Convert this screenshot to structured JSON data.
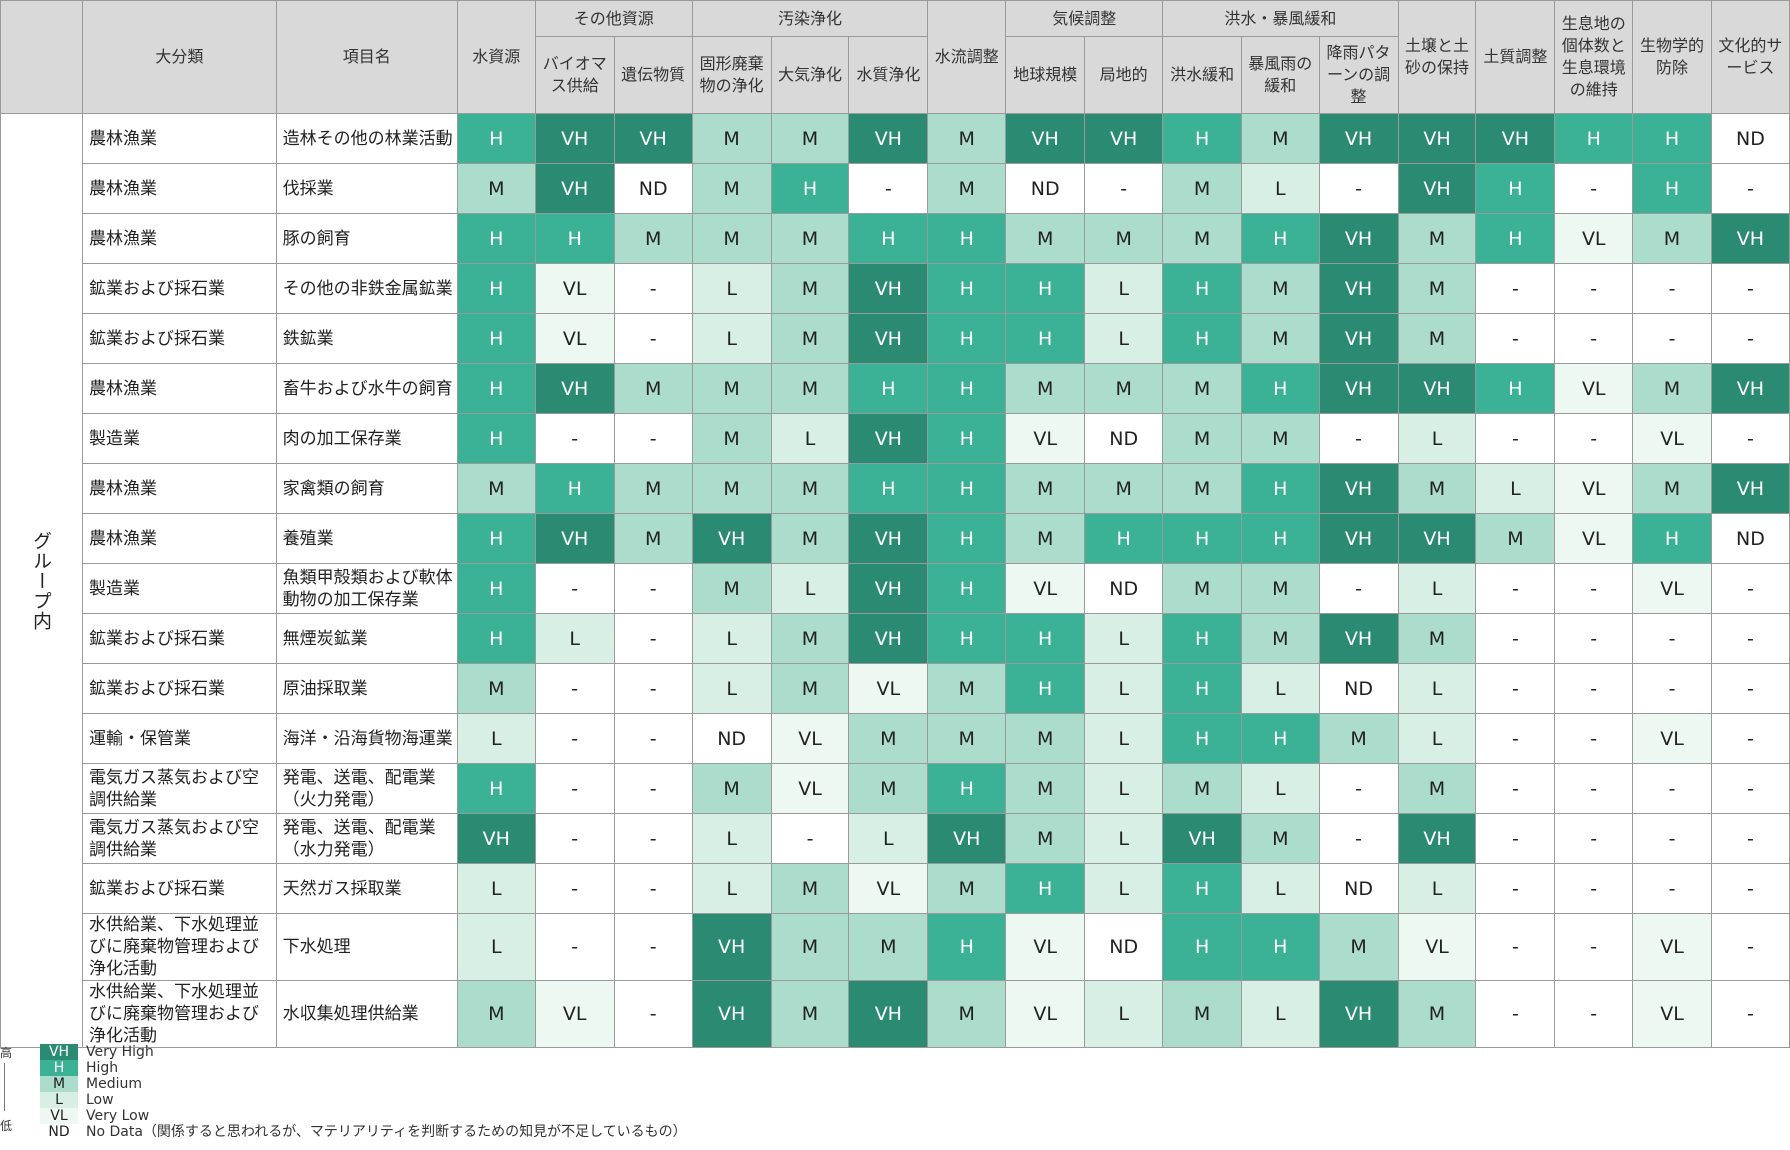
{
  "header": {
    "major_category": "大分類",
    "item_name": "項目名",
    "groups": [
      "その他資源",
      "汚染浄化",
      "気候調整",
      "洪水・暴風緩和"
    ],
    "columns": [
      "水資源",
      "バイオマス供給",
      "遺伝物質",
      "固形廃棄物の浄化",
      "大気浄化",
      "水質浄化",
      "水流調整",
      "地球規模",
      "局地的",
      "洪水緩和",
      "暴風雨の緩和",
      "降雨パターンの調整",
      "土壌と土砂の保持",
      "土質調整",
      "生息地の個体数と生息環境の維持",
      "生物学的防除",
      "文化的サービス"
    ]
  },
  "side_label": "グループ内",
  "rows": [
    {
      "category": "農林漁業",
      "item": "造林その他の林業活動",
      "values": [
        "H",
        "VH",
        "VH",
        "M",
        "M",
        "VH",
        "M",
        "VH",
        "VH",
        "H",
        "M",
        "VH",
        "VH",
        "VH",
        "H",
        "H",
        "ND"
      ]
    },
    {
      "category": "農林漁業",
      "item": "伐採業",
      "values": [
        "M",
        "VH",
        "ND",
        "M",
        "H",
        "-",
        "M",
        "ND",
        "-",
        "M",
        "L",
        "-",
        "VH",
        "H",
        "-",
        "H",
        "-"
      ]
    },
    {
      "category": "農林漁業",
      "item": "豚の飼育",
      "values": [
        "H",
        "H",
        "M",
        "M",
        "M",
        "H",
        "H",
        "M",
        "M",
        "M",
        "H",
        "VH",
        "M",
        "H",
        "VL",
        "M",
        "VH"
      ]
    },
    {
      "category": "鉱業および採石業",
      "item": "その他の非鉄金属鉱業",
      "values": [
        "H",
        "VL",
        "-",
        "L",
        "M",
        "VH",
        "H",
        "H",
        "L",
        "H",
        "M",
        "VH",
        "M",
        "-",
        "-",
        "-",
        "-"
      ]
    },
    {
      "category": "鉱業および採石業",
      "item": "鉄鉱業",
      "values": [
        "H",
        "VL",
        "-",
        "L",
        "M",
        "VH",
        "H",
        "H",
        "L",
        "H",
        "M",
        "VH",
        "M",
        "-",
        "-",
        "-",
        "-"
      ]
    },
    {
      "category": "農林漁業",
      "item": "畜牛および水牛の飼育",
      "values": [
        "H",
        "VH",
        "M",
        "M",
        "M",
        "H",
        "H",
        "M",
        "M",
        "M",
        "H",
        "VH",
        "VH",
        "H",
        "VL",
        "M",
        "VH"
      ]
    },
    {
      "category": "製造業",
      "item": "肉の加工保存業",
      "values": [
        "H",
        "-",
        "-",
        "M",
        "L",
        "VH",
        "H",
        "VL",
        "ND",
        "M",
        "M",
        "-",
        "L",
        "-",
        "-",
        "VL",
        "-"
      ]
    },
    {
      "category": "農林漁業",
      "item": "家禽類の飼育",
      "values": [
        "M",
        "H",
        "M",
        "M",
        "M",
        "H",
        "H",
        "M",
        "M",
        "M",
        "H",
        "VH",
        "M",
        "L",
        "VL",
        "M",
        "VH"
      ]
    },
    {
      "category": "農林漁業",
      "item": "養殖業",
      "values": [
        "H",
        "VH",
        "M",
        "VH",
        "M",
        "VH",
        "H",
        "M",
        "H",
        "H",
        "H",
        "VH",
        "VH",
        "M",
        "VL",
        "H",
        "ND"
      ]
    },
    {
      "category": "製造業",
      "item": "魚類甲殻類および軟体動物の加工保存業",
      "values": [
        "H",
        "-",
        "-",
        "M",
        "L",
        "VH",
        "H",
        "VL",
        "ND",
        "M",
        "M",
        "-",
        "L",
        "-",
        "-",
        "VL",
        "-"
      ]
    },
    {
      "category": "鉱業および採石業",
      "item": "無煙炭鉱業",
      "values": [
        "H",
        "L",
        "-",
        "L",
        "M",
        "VH",
        "H",
        "H",
        "L",
        "H",
        "M",
        "VH",
        "M",
        "-",
        "-",
        "-",
        "-"
      ]
    },
    {
      "category": "鉱業および採石業",
      "item": "原油採取業",
      "values": [
        "M",
        "-",
        "-",
        "L",
        "M",
        "VL",
        "M",
        "H",
        "L",
        "H",
        "L",
        "ND",
        "L",
        "-",
        "-",
        "-",
        "-"
      ]
    },
    {
      "category": "運輸・保管業",
      "item": "海洋・沿海貨物海運業",
      "values": [
        "L",
        "-",
        "-",
        "ND",
        "VL",
        "M",
        "M",
        "M",
        "L",
        "H",
        "H",
        "M",
        "L",
        "-",
        "-",
        "VL",
        "-"
      ]
    },
    {
      "category": "電気ガス蒸気および空調供給業",
      "item": "発電、送電、配電業（火力発電）",
      "values": [
        "H",
        "-",
        "-",
        "M",
        "VL",
        "M",
        "H",
        "M",
        "L",
        "M",
        "L",
        "-",
        "M",
        "-",
        "-",
        "-",
        "-"
      ]
    },
    {
      "category": "電気ガス蒸気および空調供給業",
      "item": "発電、送電、配電業（水力発電）",
      "values": [
        "VH",
        "-",
        "-",
        "L",
        "-",
        "L",
        "VH",
        "M",
        "L",
        "VH",
        "M",
        "-",
        "VH",
        "-",
        "-",
        "-",
        "-"
      ]
    },
    {
      "category": "鉱業および採石業",
      "item": "天然ガス採取業",
      "values": [
        "L",
        "-",
        "-",
        "L",
        "M",
        "VL",
        "M",
        "H",
        "L",
        "H",
        "L",
        "ND",
        "L",
        "-",
        "-",
        "-",
        "-"
      ]
    },
    {
      "category": "水供給業、下水処理並びに廃棄物管理および浄化活動",
      "item": "下水処理",
      "values": [
        "L",
        "-",
        "-",
        "VH",
        "M",
        "M",
        "H",
        "VL",
        "ND",
        "H",
        "H",
        "M",
        "VL",
        "-",
        "-",
        "VL",
        "-"
      ]
    },
    {
      "category": "水供給業、下水処理並びに廃棄物管理および浄化活動",
      "item": "水収集処理供給業",
      "values": [
        "M",
        "VL",
        "-",
        "VH",
        "M",
        "VH",
        "M",
        "VL",
        "L",
        "M",
        "L",
        "VH",
        "M",
        "-",
        "-",
        "VL",
        "-"
      ]
    }
  ],
  "level_colors": {
    "VH": "#2b8a72",
    "H": "#3bb196",
    "M": "#acdccc",
    "L": "#d8efe6",
    "VL": "#eef8f3",
    "ND": "#ffffff",
    "-": "#ffffff"
  },
  "legend": {
    "high": "高",
    "low": "低",
    "items": [
      {
        "code": "VH",
        "label": "Very High"
      },
      {
        "code": "H",
        "label": "High"
      },
      {
        "code": "M",
        "label": "Medium"
      },
      {
        "code": "L",
        "label": "Low"
      },
      {
        "code": "VL",
        "label": "Very Low"
      },
      {
        "code": "ND",
        "label": "No Data（関係すると思われるが、マテリアリティを判断するための知見が不足しているもの）"
      }
    ]
  }
}
